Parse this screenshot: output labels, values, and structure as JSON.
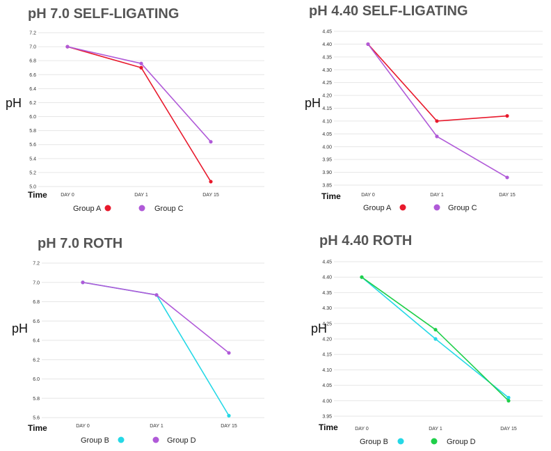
{
  "chart_data": [
    {
      "type": "line",
      "title": "pH 7.0   SELF-LIGATING",
      "ylabel": "pH",
      "xlabel": "Time",
      "categories": [
        "DAY 0",
        "DAY 1",
        "DAY 15"
      ],
      "yticks": [
        "5.0",
        "5.2",
        "5.4",
        "5.6",
        "5.8",
        "6.0",
        "6.2",
        "6.4",
        "6.6",
        "6.8",
        "7.0",
        "7.2"
      ],
      "ylim": [
        5.0,
        7.2
      ],
      "series": [
        {
          "name": "Group A",
          "color": "#e8192c",
          "values": [
            7.0,
            6.7,
            5.07
          ]
        },
        {
          "name": "Group C",
          "color": "#b05ad8",
          "values": [
            7.0,
            6.76,
            5.64
          ]
        }
      ]
    },
    {
      "type": "line",
      "title": "pH 4.40   SELF-LIGATING",
      "ylabel": "pH",
      "xlabel": "Time",
      "categories": [
        "DAY 0",
        "DAY 1",
        "DAY 15"
      ],
      "yticks": [
        "3.85",
        "3.90",
        "3.95",
        "4.00",
        "4.05",
        "4.10",
        "4.15",
        "4.20",
        "4.25",
        "4.30",
        "4.35",
        "4.40",
        "4.45"
      ],
      "ylim": [
        3.85,
        4.45
      ],
      "series": [
        {
          "name": "Group A",
          "color": "#e8192c",
          "values": [
            4.4,
            4.1,
            4.12
          ]
        },
        {
          "name": "Group C",
          "color": "#b05ad8",
          "values": [
            4.4,
            4.04,
            3.88
          ]
        }
      ]
    },
    {
      "type": "line",
      "title": "pH 7.0 ROTH",
      "ylabel": "pH",
      "xlabel": "Time",
      "categories": [
        "DAY 0",
        "DAY 1",
        "DAY 15"
      ],
      "yticks": [
        "5.6",
        "5.8",
        "6.0",
        "6.2",
        "6.4",
        "6.6",
        "6.8",
        "7.0",
        "7.2"
      ],
      "ylim": [
        5.6,
        7.2
      ],
      "series": [
        {
          "name": "Group B",
          "color": "#25d8e6",
          "values": [
            7.0,
            6.87,
            5.62
          ]
        },
        {
          "name": "Group D",
          "color": "#b05ad8",
          "values": [
            7.0,
            6.87,
            6.27
          ]
        }
      ]
    },
    {
      "type": "line",
      "title": "pH 4.40 ROTH",
      "ylabel": "pH",
      "xlabel": "Time",
      "categories": [
        "DAY 0",
        "DAY 1",
        "DAY 15"
      ],
      "yticks": [
        "3.95",
        "4.00",
        "4.05",
        "4.10",
        "4.15",
        "4.20",
        "4.25",
        "4.30",
        "4.35",
        "4.40",
        "4.45"
      ],
      "ylim": [
        3.95,
        4.45
      ],
      "series": [
        {
          "name": "Group B",
          "color": "#25d8e6",
          "values": [
            4.4,
            4.2,
            4.01
          ]
        },
        {
          "name": "Group D",
          "color": "#1fcf4a",
          "values": [
            4.4,
            4.23,
            4.0
          ]
        }
      ]
    }
  ]
}
